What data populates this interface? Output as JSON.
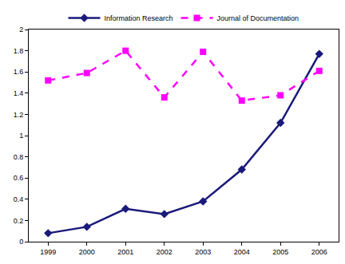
{
  "chart_data": {
    "type": "line",
    "categories": [
      "1999",
      "2000",
      "2001",
      "2002",
      "2003",
      "2004",
      "2005",
      "2006"
    ],
    "series": [
      {
        "name": "Information Research",
        "color": "#1a1a7a",
        "marker": "diamond",
        "line_style": "solid",
        "values": [
          0.08,
          0.14,
          0.31,
          0.26,
          0.38,
          0.68,
          1.12,
          1.77
        ]
      },
      {
        "name": "Journal of Documentation",
        "color": "#ff00ff",
        "marker": "square",
        "line_style": "dashed",
        "values": [
          1.52,
          1.59,
          1.8,
          1.36,
          1.79,
          1.33,
          1.38,
          1.61
        ]
      }
    ],
    "ylim": [
      0,
      2
    ],
    "yticks": [
      0,
      0.2,
      0.4,
      0.6,
      0.8,
      1,
      1.2,
      1.4,
      1.6,
      1.8,
      2
    ],
    "grid": false,
    "legend": "top"
  }
}
